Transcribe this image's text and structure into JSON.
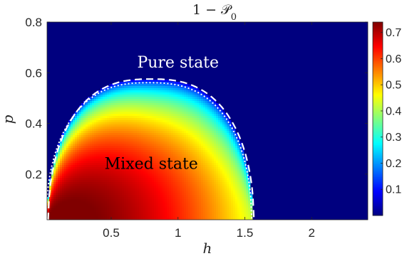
{
  "chart_data": {
    "type": "heatmap",
    "title": "1 − 𝒫",
    "title_subscript": "0",
    "xlabel": "h",
    "ylabel": "p",
    "xlim": [
      0.02,
      2.42
    ],
    "ylim": [
      0.02,
      0.8
    ],
    "x_ticks": [
      "0.5",
      "1",
      "1.5",
      "2"
    ],
    "x_tick_values": [
      0.5,
      1,
      1.5,
      2
    ],
    "y_ticks": [
      "0.2",
      "0.4",
      "0.6",
      "0.8"
    ],
    "y_tick_values": [
      0.2,
      0.4,
      0.6,
      0.8
    ],
    "colorbar": {
      "range": [
        0,
        0.74
      ],
      "ticks": [
        "0.1",
        "0.2",
        "0.3",
        "0.4",
        "0.5",
        "0.6",
        "0.7"
      ],
      "tick_values": [
        0.1,
        0.2,
        0.3,
        0.4,
        0.5,
        0.6,
        0.7
      ],
      "colormap": "jet"
    },
    "background_color": "#00007f",
    "annotations": [
      {
        "text": "Pure state",
        "x": 1.0,
        "y": 0.62,
        "color": "#ffffff"
      },
      {
        "text": "Mixed state",
        "x": 0.8,
        "y": 0.22,
        "color": "#000000"
      }
    ],
    "boundary": {
      "peak_h": 0.78,
      "peak_p": 0.575,
      "h_min": 0.02,
      "h_max": 1.56,
      "dashed_color": "#ffffff",
      "dotted_color": "#ffffff"
    },
    "surface": {
      "max_value": 0.74,
      "max_at": [
        0.02,
        0.02
      ]
    }
  }
}
